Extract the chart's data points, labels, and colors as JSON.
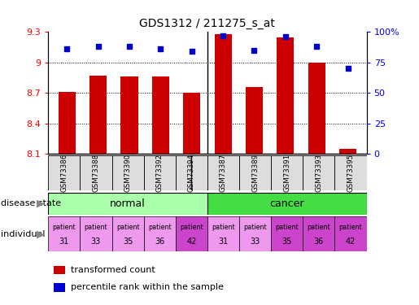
{
  "title": "GDS1312 / 211275_s_at",
  "samples": [
    "GSM73386",
    "GSM73388",
    "GSM73390",
    "GSM73392",
    "GSM73394",
    "GSM73387",
    "GSM73389",
    "GSM73391",
    "GSM73393",
    "GSM73395"
  ],
  "bar_values": [
    8.71,
    8.87,
    8.86,
    8.86,
    8.7,
    9.28,
    8.76,
    9.25,
    9.0,
    8.15
  ],
  "percentile_values": [
    86,
    88,
    88,
    86,
    84,
    97,
    85,
    96,
    88,
    70
  ],
  "ylim_left": [
    8.1,
    9.3
  ],
  "ylim_right": [
    0,
    100
  ],
  "yticks_left": [
    8.1,
    8.4,
    8.7,
    9.0,
    9.3
  ],
  "yticks_right": [
    0,
    25,
    50,
    75,
    100
  ],
  "ytick_labels_left": [
    "8.1",
    "8.4",
    "8.7",
    "9",
    "9.3"
  ],
  "ytick_labels_right": [
    "0",
    "25",
    "50",
    "75",
    "100%"
  ],
  "individuals": [
    "31",
    "33",
    "35",
    "36",
    "42",
    "31",
    "33",
    "35",
    "36",
    "42"
  ],
  "bar_color": "#cc0000",
  "dot_color": "#0000cc",
  "normal_color": "#aaffaa",
  "cancer_color": "#44dd44",
  "patient_colors": [
    "#ee99ee",
    "#ee99ee",
    "#ee99ee",
    "#ee99ee",
    "#cc44cc",
    "#ee99ee",
    "#ee99ee",
    "#cc44cc",
    "#cc44cc",
    "#cc44cc"
  ],
  "sample_box_color": "#dddddd",
  "bar_bottom": 8.1,
  "normal_group_label": "normal",
  "cancer_group_label": "cancer",
  "legend_bar_label": "transformed count",
  "legend_dot_label": "percentile rank within the sample",
  "disease_state_label": "disease state",
  "individual_label": "individual",
  "grid_yticks": [
    8.4,
    8.7,
    9.0
  ]
}
